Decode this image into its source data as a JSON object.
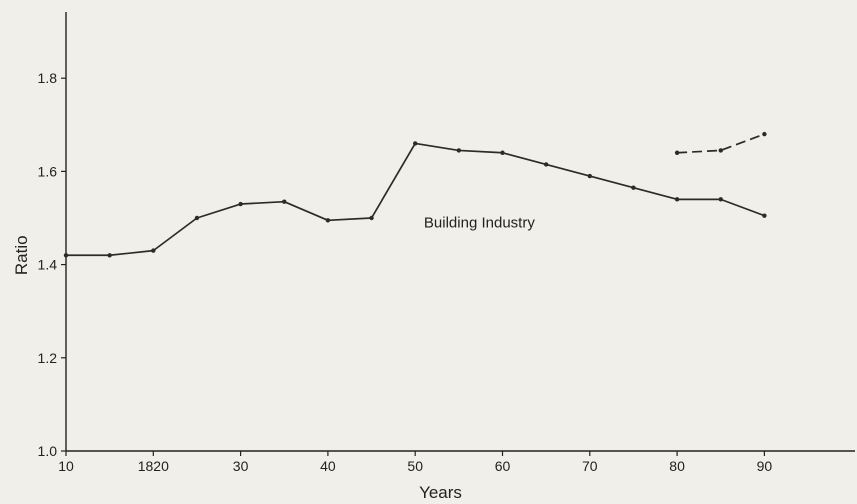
{
  "chart_data": {
    "type": "line",
    "xlabel": "Years",
    "ylabel": "Ratio",
    "xlim": [
      1810,
      1900
    ],
    "ylim": [
      1.0,
      1.95
    ],
    "x_ticks": [
      1810,
      1820,
      1830,
      1840,
      1850,
      1860,
      1870,
      1880,
      1890
    ],
    "x_tick_labels": [
      "10",
      "1820",
      "30",
      "40",
      "50",
      "60",
      "70",
      "80",
      "90"
    ],
    "y_ticks": [
      1.0,
      1.2,
      1.4,
      1.6,
      1.8
    ],
    "y_tick_labels": [
      "1.0",
      "1.2",
      "1.4",
      "1.6",
      "1.8"
    ],
    "grid": false,
    "series": [
      {
        "name": "Building Industry",
        "style": "solid",
        "color": "#2b2b2b",
        "x": [
          1810,
          1815,
          1820,
          1825,
          1830,
          1835,
          1840,
          1845,
          1850,
          1855,
          1860,
          1865,
          1870,
          1875,
          1880,
          1885,
          1890
        ],
        "y": [
          1.42,
          1.42,
          1.43,
          1.5,
          1.53,
          1.535,
          1.495,
          1.5,
          1.66,
          1.645,
          1.64,
          1.615,
          1.59,
          1.565,
          1.54,
          1.54,
          1.505
        ]
      },
      {
        "style": "dashed",
        "color": "#2b2b2b",
        "x": [
          1880,
          1885,
          1890
        ],
        "y": [
          1.64,
          1.645,
          1.68
        ]
      }
    ],
    "annotations": [
      {
        "text": "Building Industry",
        "x": 1851,
        "y": 1.49
      }
    ]
  }
}
